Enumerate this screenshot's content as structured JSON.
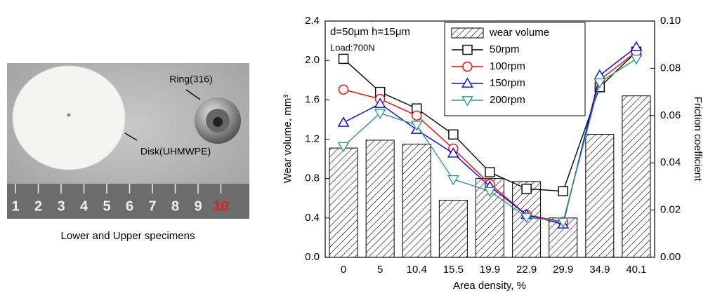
{
  "photo": {
    "labels": [
      "Ring(316)",
      "Disk(UHMWPE)"
    ],
    "ruler": [
      "1",
      "2",
      "3",
      "4",
      "5",
      "6",
      "7",
      "8",
      "9",
      "10"
    ],
    "caption": "Lower and Upper specimens"
  },
  "chart_data": {
    "type": "combo",
    "annotations": [
      "d=50μm h=15μm",
      "Load:700N"
    ],
    "x_label": "Area density, %",
    "y_label": "Wear volume, mm³",
    "y2_label": "Friction coefficient",
    "categories": [
      "0",
      "5",
      "10.4",
      "15.5",
      "19.9",
      "22.9",
      "29.9",
      "34.9",
      "40.1"
    ],
    "ylim": [
      0,
      2.4
    ],
    "yticks": [
      {
        "value": 0,
        "label": "0.0"
      },
      0.4,
      0.8,
      1.2,
      1.6,
      {
        "value": 2,
        "label": "2.0"
      },
      2.4
    ],
    "y2lim": [
      0,
      0.1
    ],
    "y2ticks": [
      {
        "value": 0,
        "label": "0.00"
      },
      0.02,
      0.04,
      0.06,
      0.08,
      {
        "value": 0.1,
        "label": "0.10"
      }
    ],
    "series": [
      {
        "name": "wear volume",
        "type": "bar",
        "color": "#000000",
        "values": [
          1.11,
          1.19,
          1.15,
          0.58,
          0.8,
          0.77,
          0.4,
          1.25,
          1.64
        ]
      },
      {
        "name": "50rpm",
        "type": "line",
        "axis": "y2",
        "marker": "square",
        "color": "#000000",
        "values": [
          0.084,
          0.07,
          0.063,
          0.052,
          0.036,
          0.029,
          0.028,
          0.072,
          0.087
        ]
      },
      {
        "name": "100rpm",
        "type": "line",
        "axis": "y2",
        "marker": "circle",
        "color": "#ff0000",
        "values": [
          0.071,
          0.067,
          0.06,
          0.046,
          0.031,
          0.018,
          0.015,
          0.075,
          0.087
        ]
      },
      {
        "name": "150rpm",
        "type": "line",
        "axis": "y2",
        "marker": "triangle-up",
        "color": "#0000ff",
        "values": [
          0.057,
          0.065,
          0.054,
          0.044,
          0.03,
          0.018,
          0.014,
          0.077,
          0.089
        ]
      },
      {
        "name": "200rpm",
        "type": "line",
        "axis": "y2",
        "marker": "triangle-down",
        "color": "#2a9a8a",
        "values": [
          0.047,
          0.061,
          0.056,
          0.033,
          0.028,
          0.017,
          0.015,
          0.074,
          0.084
        ]
      }
    ]
  }
}
